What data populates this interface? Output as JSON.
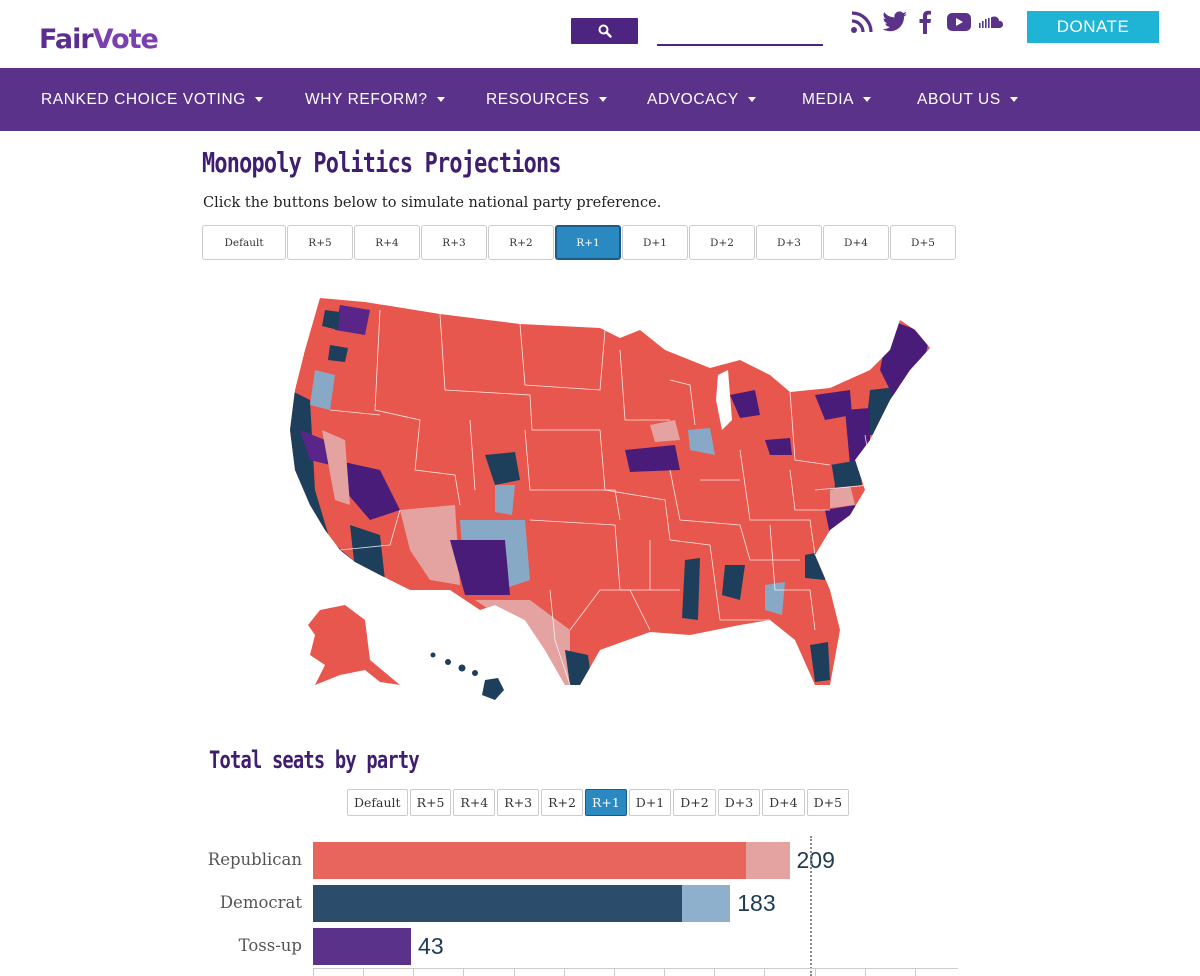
{
  "header": {
    "logo_text_a": "Fair",
    "logo_text_b": "Vote",
    "search_placeholder": "",
    "donate_label": "DONATE",
    "social": [
      "rss-icon",
      "twitter-icon",
      "facebook-icon",
      "youtube-icon",
      "soundcloud-icon"
    ]
  },
  "nav": {
    "items": [
      {
        "label": "RANKED CHOICE VOTING"
      },
      {
        "label": "WHY REFORM?"
      },
      {
        "label": "RESOURCES"
      },
      {
        "label": "ADVOCACY"
      },
      {
        "label": "MEDIA"
      },
      {
        "label": "ABOUT US"
      }
    ]
  },
  "main": {
    "title": "Monopoly Politics Projections",
    "subtitle": "Click the buttons below to simulate national party preference.",
    "buttons": [
      "Default",
      "R+5",
      "R+4",
      "R+3",
      "R+2",
      "R+1",
      "D+1",
      "D+2",
      "D+3",
      "D+4",
      "D+5"
    ],
    "active_button": "R+1"
  },
  "seats": {
    "title": "Total seats by party",
    "buttons": [
      "Default",
      "R+5",
      "R+4",
      "R+3",
      "R+2",
      "R+1",
      "D+1",
      "D+2",
      "D+3",
      "D+4",
      "D+5"
    ],
    "active_button": "R+1"
  },
  "colors": {
    "republican": "#e8655d",
    "republican_lean": "#e4a3a0",
    "democrat": "#2b4c6b",
    "democrat_lean": "#8fb0cc",
    "tossup": "#5a3289",
    "nav_bg": "#5a3289",
    "accent": "#2a89c0"
  },
  "chart_data": {
    "type": "bar",
    "orientation": "horizontal",
    "title": "Total seats by party",
    "categories": [
      "Republican",
      "Democrat",
      "Toss-up"
    ],
    "series": [
      {
        "name": "",
        "values": [
          190,
          162,
          43
        ]
      },
      {
        "name": "",
        "values": [
          19,
          21,
          0
        ]
      }
    ],
    "totals": [
      "209",
      "183",
      "43"
    ],
    "xlim": [
      0,
      250
    ],
    "reference_line": 218,
    "grid": false
  }
}
